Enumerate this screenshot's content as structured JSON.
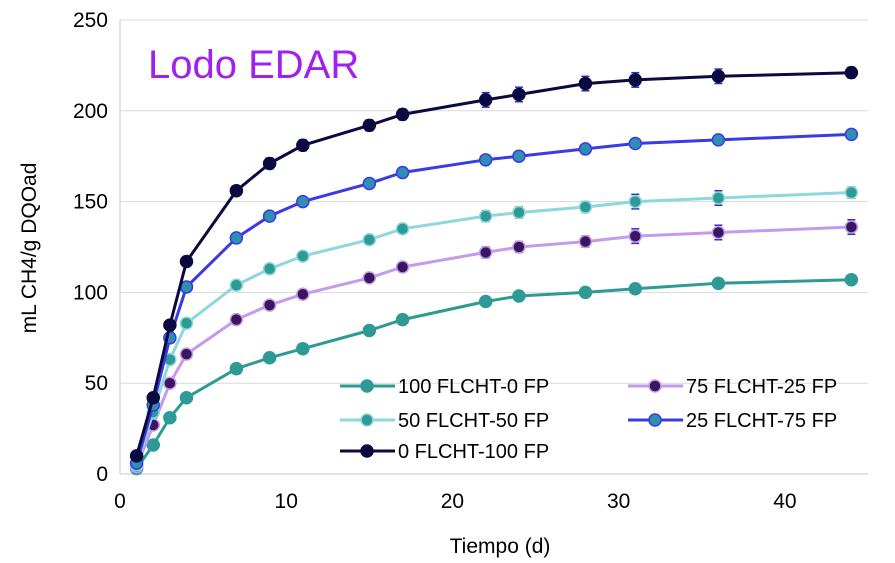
{
  "chart_data": {
    "type": "line",
    "title": "Lodo EDAR",
    "title_color": "#A020F0",
    "xlabel": "Tiempo (d)",
    "ylabel": "mL CH4/g DQOad",
    "xlim": [
      0,
      45
    ],
    "ylim": [
      0,
      250
    ],
    "xticks": [
      "0",
      "10",
      "20",
      "30",
      "40"
    ],
    "yticks": [
      "0",
      "50",
      "100",
      "150",
      "200",
      "250"
    ],
    "grid": "horizontal",
    "legend_position": "bottom-right",
    "x": [
      1,
      2,
      3,
      4,
      7,
      9,
      11,
      15,
      17,
      22,
      24,
      28,
      31,
      36,
      44
    ],
    "series": [
      {
        "name": "100 FLCHT-0 FP",
        "color": "#2E9A96",
        "marker_color": "#2E9A96",
        "values": [
          3,
          16,
          31,
          42,
          58,
          64,
          69,
          79,
          85,
          95,
          98,
          100,
          102,
          105,
          107
        ],
        "errors": [
          1,
          1,
          1,
          1,
          1,
          1,
          1,
          1,
          1,
          1,
          1,
          1,
          1,
          2,
          2
        ]
      },
      {
        "name": "75 FLCHT-25 FP",
        "color": "#C39BEA",
        "marker_color": "#3A1560",
        "values": [
          4,
          27,
          50,
          66,
          85,
          93,
          99,
          108,
          114,
          122,
          125,
          128,
          131,
          133,
          136
        ],
        "errors": [
          1,
          1,
          1,
          1,
          2,
          2,
          2,
          2,
          2,
          3,
          3,
          3,
          4,
          4,
          4
        ]
      },
      {
        "name": "50 FLCHT-50 FP",
        "color": "#8ED7DA",
        "marker_color": "#2E9A96",
        "values": [
          5,
          34,
          63,
          83,
          104,
          113,
          120,
          129,
          135,
          142,
          144,
          147,
          150,
          152,
          155
        ],
        "errors": [
          1,
          1,
          1,
          1,
          2,
          2,
          2,
          2,
          2,
          3,
          3,
          3,
          4,
          4,
          3
        ]
      },
      {
        "name": "25 FLCHT-75 FP",
        "color": "#3A3AE6",
        "marker_color": "#2E8FB0",
        "values": [
          6,
          38,
          75,
          103,
          130,
          142,
          150,
          160,
          166,
          173,
          175,
          179,
          182,
          184,
          187
        ],
        "errors": [
          1,
          1,
          1,
          1,
          2,
          2,
          2,
          2,
          2,
          2,
          2,
          2,
          2,
          2,
          2
        ]
      },
      {
        "name": "0 FLCHT-100 FP",
        "color": "#0A0A40",
        "marker_color": "#0A0A40",
        "values": [
          10,
          42,
          82,
          117,
          156,
          171,
          181,
          192,
          198,
          206,
          209,
          215,
          217,
          219,
          221
        ],
        "errors": [
          1,
          1,
          1,
          1,
          2,
          3,
          3,
          3,
          3,
          4,
          4,
          4,
          4,
          4,
          3
        ]
      }
    ]
  }
}
